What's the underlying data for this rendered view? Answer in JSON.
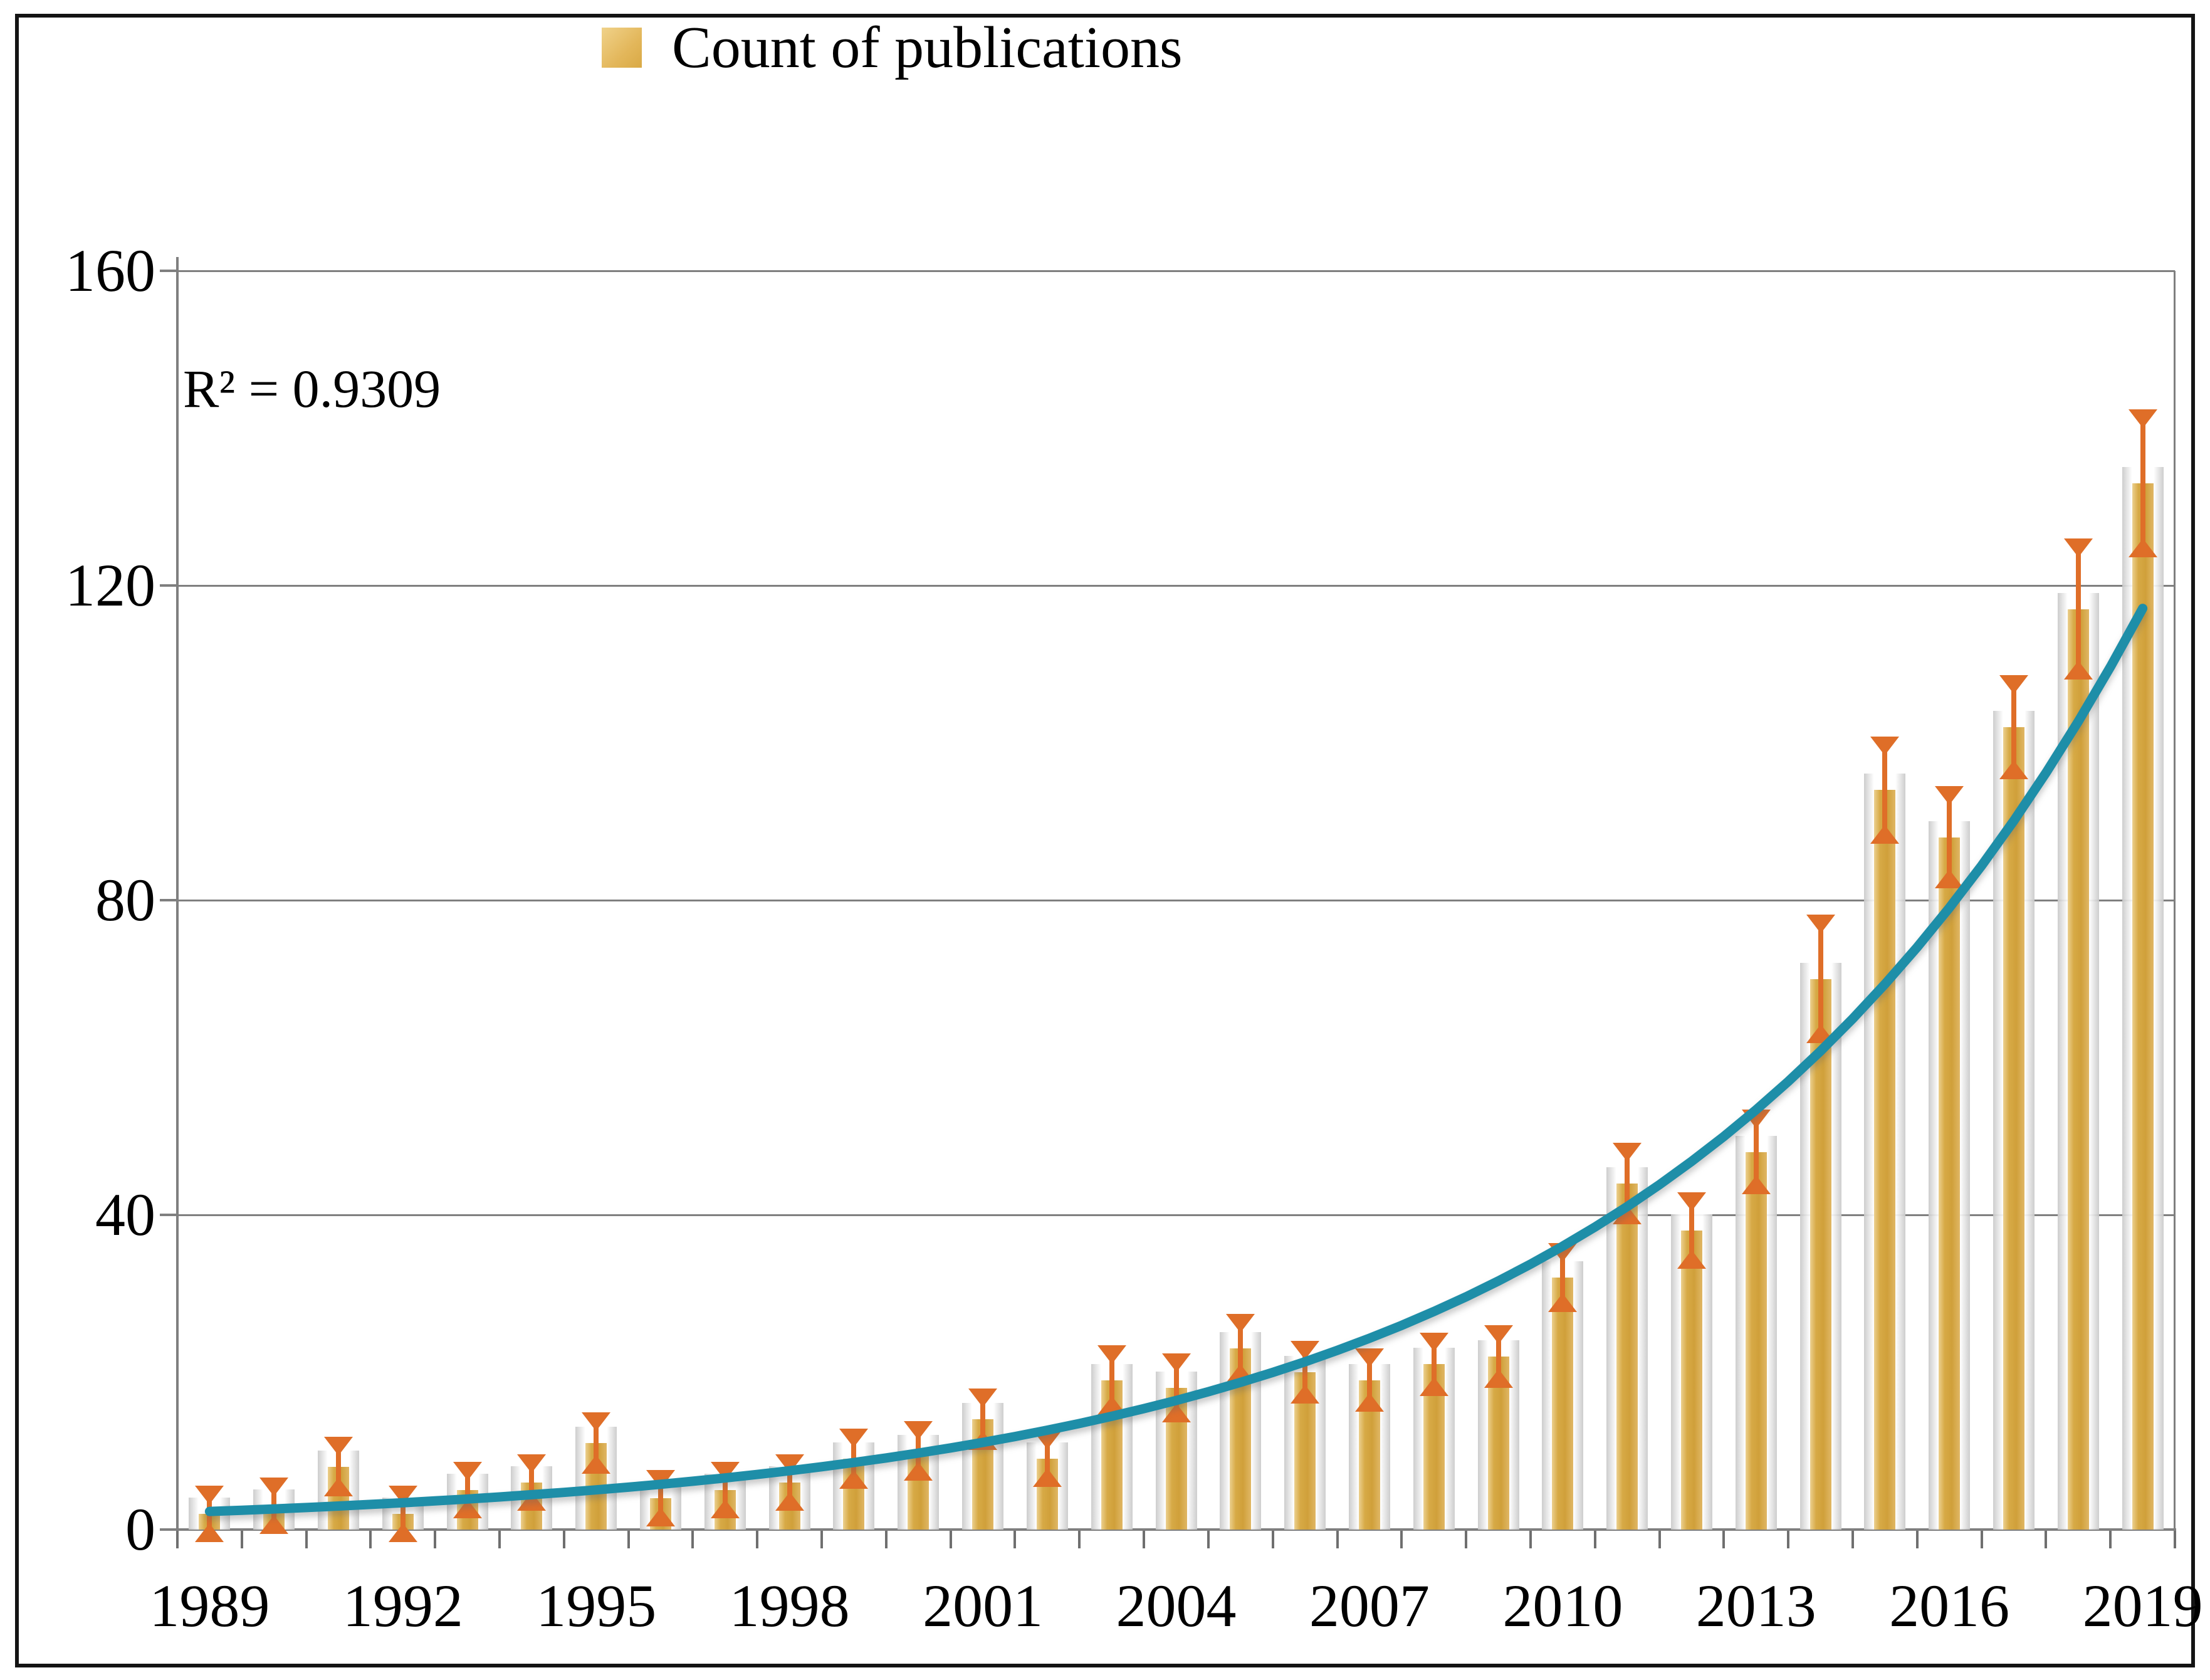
{
  "legend": {
    "label": "Count of publications"
  },
  "annotation": {
    "r_squared": "R² = 0.9309"
  },
  "colors": {
    "bar_fill": "#d7aa46",
    "bar_highlight": "#ecd08f",
    "error_marker": "#df6e28",
    "trendline": "#1e8ea8",
    "gridline": "#7f7f7f",
    "axis": "#7f7f7f",
    "text": "#000000",
    "legend_swatch": "#e3b75b"
  },
  "chart_data": {
    "type": "bar",
    "title": "",
    "xlabel": "",
    "ylabel": "",
    "categories": [
      1989,
      1990,
      1991,
      1992,
      1993,
      1994,
      1995,
      1996,
      1997,
      1998,
      1999,
      2000,
      2001,
      2002,
      2003,
      2004,
      2005,
      2006,
      2007,
      2008,
      2009,
      2010,
      2011,
      2012,
      2013,
      2014,
      2015,
      2016,
      2017,
      2018,
      2019
    ],
    "series": [
      {
        "name": "Count of publications",
        "values": [
          2,
          3,
          8,
          2,
          5,
          6,
          11,
          4,
          5,
          6,
          9,
          10,
          14,
          9,
          19,
          18,
          23,
          20,
          19,
          21,
          22,
          32,
          44,
          38,
          48,
          70,
          94,
          88,
          102,
          117,
          133
        ],
        "errors": [
          1.2,
          1.2,
          1.4,
          1.2,
          1.2,
          1.2,
          1.5,
          1.2,
          1.2,
          1.2,
          1.4,
          1.4,
          1.5,
          1.2,
          2,
          2,
          2,
          1.6,
          1.6,
          1.6,
          1.6,
          2,
          2.8,
          2.5,
          3,
          5.8,
          4.4,
          4.1,
          4.2,
          6.6,
          7
        ]
      }
    ],
    "trendline": {
      "type": "exponential",
      "a": 2.3,
      "b": 0.131,
      "r_squared": 0.9309
    },
    "ylim": [
      0,
      160
    ],
    "yticks": [
      0,
      40,
      80,
      120,
      160
    ],
    "xtick_labels": [
      "1989",
      "1992",
      "1995",
      "1998",
      "2001",
      "2004",
      "2007",
      "2010",
      "2013",
      "2016",
      "2019"
    ],
    "xtick_step_years": 3,
    "grid": "horizontal",
    "legend_position": "top-center"
  }
}
